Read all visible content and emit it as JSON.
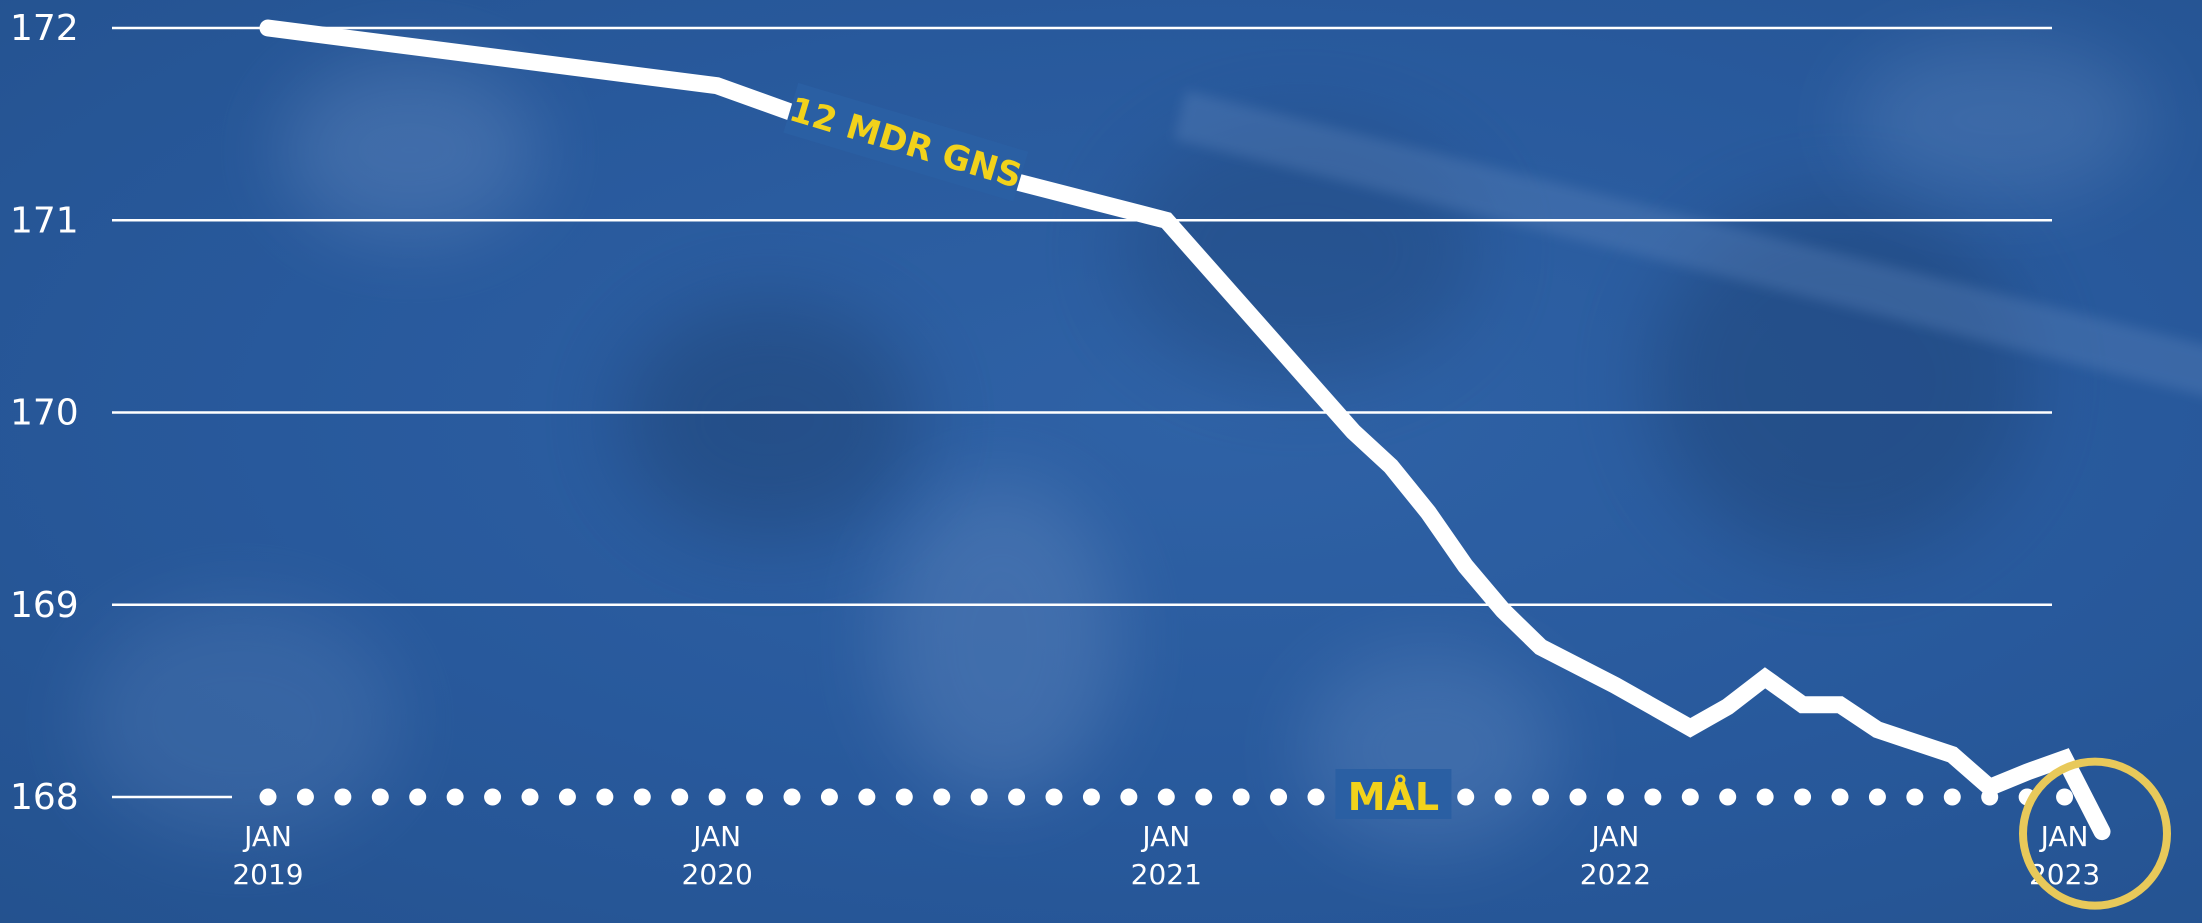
{
  "colors": {
    "background": "#2b5ea3",
    "line": "#ffffff",
    "gridline": "#ffffff",
    "label_accent": "#f2d21b",
    "label_box": "#2a5fa3",
    "highlight_ring": "#e8c95a"
  },
  "chart_data": {
    "type": "line",
    "title": "",
    "xlabel": "",
    "ylabel": "",
    "ylim": [
      168,
      172
    ],
    "xlim": [
      "2019-01",
      "2023-02"
    ],
    "grid": true,
    "y_ticks": [
      "168",
      "169",
      "170",
      "171",
      "172"
    ],
    "x_ticks": [
      {
        "month": "JAN",
        "year": "2019",
        "x": "2019-01"
      },
      {
        "month": "JAN",
        "year": "2020",
        "x": "2020-01"
      },
      {
        "month": "JAN",
        "year": "2021",
        "x": "2021-01"
      },
      {
        "month": "JAN",
        "year": "2022",
        "x": "2022-01"
      },
      {
        "month": "JAN",
        "year": "2023",
        "x": "2023-01"
      }
    ],
    "series": [
      {
        "name": "12 MDR GNS",
        "style": "solid",
        "points": [
          {
            "x": "2019-01",
            "y": 172.0
          },
          {
            "x": "2020-01",
            "y": 171.7
          },
          {
            "x": "2020-06",
            "y": 171.35
          },
          {
            "x": "2021-01",
            "y": 171.0
          },
          {
            "x": "2021-06",
            "y": 169.9
          },
          {
            "x": "2021-07",
            "y": 169.72
          },
          {
            "x": "2021-08",
            "y": 169.48
          },
          {
            "x": "2021-09",
            "y": 169.2
          },
          {
            "x": "2021-10",
            "y": 168.97
          },
          {
            "x": "2021-11",
            "y": 168.78
          },
          {
            "x": "2022-01",
            "y": 168.58
          },
          {
            "x": "2022-03",
            "y": 168.36
          },
          {
            "x": "2022-04",
            "y": 168.47
          },
          {
            "x": "2022-05",
            "y": 168.62
          },
          {
            "x": "2022-06",
            "y": 168.48
          },
          {
            "x": "2022-07",
            "y": 168.48
          },
          {
            "x": "2022-08",
            "y": 168.35
          },
          {
            "x": "2022-10",
            "y": 168.22
          },
          {
            "x": "2022-11",
            "y": 168.05
          },
          {
            "x": "2022-12",
            "y": 168.13
          },
          {
            "x": "2023-01",
            "y": 168.2
          },
          {
            "x": "2023-02",
            "y": 167.82
          }
        ]
      },
      {
        "name": "MÅL",
        "style": "dotted",
        "y": 168,
        "x_range": [
          "2019-01",
          "2023-01"
        ]
      }
    ]
  }
}
